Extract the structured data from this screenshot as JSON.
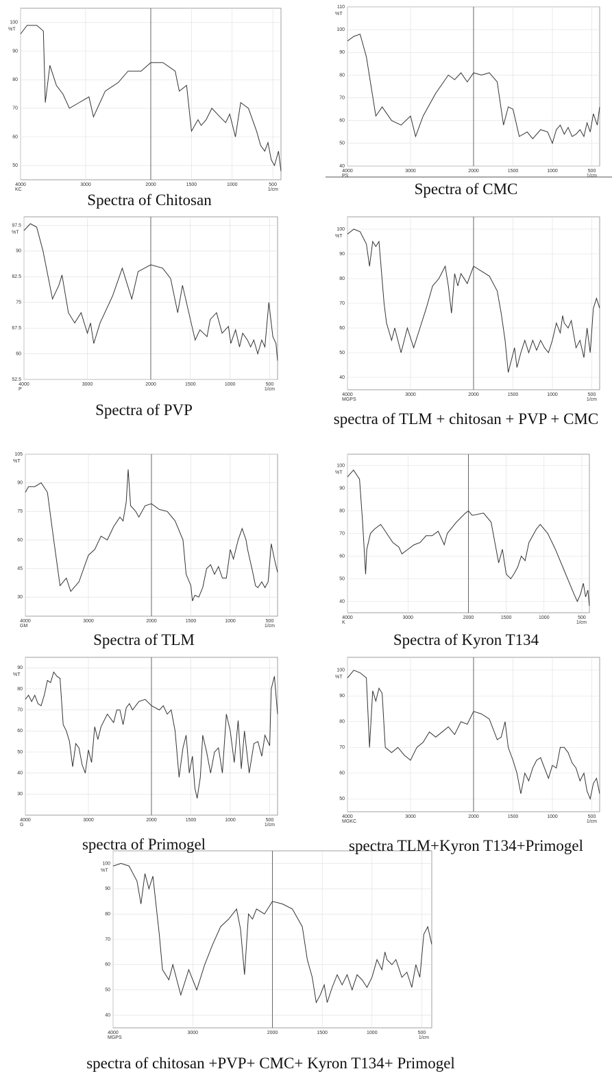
{
  "chart_data": [
    {
      "type": "line",
      "caption": "Spectra of Chitosan",
      "code": "KC",
      "y_label": "%T",
      "x_label": "1/cm",
      "color": "#333333",
      "grid": true,
      "xlim": [
        4000,
        400
      ],
      "xticks": [
        4000,
        3000,
        2000,
        1500,
        1000,
        500
      ],
      "ylim": [
        45,
        105
      ],
      "yticks": [
        50,
        60,
        70,
        80,
        90,
        100
      ],
      "x": [
        4000,
        3900,
        3750,
        3650,
        3620,
        3550,
        3450,
        3350,
        3250,
        3100,
        2950,
        2880,
        2700,
        2500,
        2350,
        2150,
        2000,
        1850,
        1700,
        1650,
        1560,
        1500,
        1420,
        1380,
        1320,
        1250,
        1150,
        1080,
        1030,
        960,
        895,
        800,
        700,
        650,
        600,
        560,
        520,
        480,
        430,
        400
      ],
      "values": [
        96,
        99,
        99,
        97,
        72,
        85,
        78,
        75,
        70,
        72,
        74,
        67,
        76,
        79,
        83,
        83,
        86,
        86,
        83,
        76,
        78,
        62,
        66,
        64,
        66,
        70,
        67,
        65,
        68,
        60,
        72,
        70,
        62,
        57,
        55,
        58,
        52,
        50,
        55,
        48
      ]
    },
    {
      "type": "line",
      "caption": "Spectra of CMC",
      "code": "PS",
      "y_label": "%T",
      "x_label": "1/cm",
      "color": "#333333",
      "grid": true,
      "xlim": [
        4000,
        400
      ],
      "xticks": [
        4000,
        3000,
        2000,
        1500,
        1000,
        500
      ],
      "ylim": [
        40,
        110
      ],
      "yticks": [
        40,
        50,
        60,
        70,
        80,
        90,
        100,
        110
      ],
      "x": [
        4000,
        3900,
        3800,
        3700,
        3550,
        3450,
        3300,
        3150,
        3000,
        2920,
        2800,
        2600,
        2400,
        2300,
        2200,
        2100,
        2000,
        1900,
        1800,
        1700,
        1620,
        1560,
        1500,
        1420,
        1320,
        1250,
        1150,
        1060,
        1000,
        950,
        900,
        850,
        800,
        750,
        700,
        650,
        600,
        560,
        520,
        480,
        430,
        400
      ],
      "values": [
        95,
        97,
        98,
        88,
        62,
        66,
        60,
        58,
        62,
        53,
        62,
        72,
        80,
        78,
        81,
        77,
        81,
        80,
        81,
        77,
        58,
        66,
        65,
        53,
        55,
        52,
        56,
        55,
        50,
        56,
        58,
        54,
        57,
        53,
        54,
        56,
        53,
        59,
        55,
        63,
        58,
        66
      ]
    },
    {
      "type": "line",
      "caption": "Spectra  of  PVP",
      "code": "P",
      "y_label": "%T",
      "x_label": "1/cm",
      "color": "#333333",
      "grid": true,
      "xlim": [
        4000,
        400
      ],
      "xticks": [
        4000,
        3000,
        2000,
        1500,
        1000,
        500
      ],
      "ylim": [
        52.5,
        100
      ],
      "yticks": [
        52.5,
        60,
        67.5,
        75,
        82.5,
        90,
        97.5
      ],
      "x": [
        4000,
        3900,
        3800,
        3700,
        3550,
        3450,
        3400,
        3300,
        3200,
        3100,
        3000,
        2950,
        2900,
        2800,
        2600,
        2450,
        2400,
        2300,
        2200,
        2000,
        1850,
        1750,
        1660,
        1600,
        1500,
        1440,
        1380,
        1290,
        1250,
        1170,
        1100,
        1020,
        990,
        930,
        880,
        840,
        780,
        740,
        700,
        650,
        600,
        560,
        510,
        460,
        420,
        400
      ],
      "values": [
        96,
        98,
        97,
        90,
        76,
        80,
        83,
        72,
        69,
        72,
        66,
        69,
        63,
        69,
        77,
        85,
        82,
        76,
        84,
        86,
        85,
        82,
        72,
        80,
        70,
        64,
        67,
        65,
        70,
        72,
        66,
        68,
        63,
        67,
        62,
        66,
        64,
        62,
        64,
        60,
        64,
        62,
        75,
        65,
        63,
        58
      ]
    },
    {
      "type": "line",
      "caption": "spectra of TLM + chitosan + PVP + CMC",
      "code": "MGPS",
      "y_label": "%T",
      "x_label": "1/cm",
      "color": "#333333",
      "grid": true,
      "xlim": [
        4000,
        400
      ],
      "xticks": [
        4000,
        3000,
        2000,
        1500,
        1000,
        500
      ],
      "ylim": [
        35,
        105
      ],
      "yticks": [
        40,
        50,
        60,
        70,
        80,
        90,
        100
      ],
      "x": [
        4000,
        3900,
        3800,
        3700,
        3650,
        3600,
        3550,
        3500,
        3420,
        3380,
        3300,
        3250,
        3150,
        3050,
        2950,
        2850,
        2750,
        2650,
        2550,
        2450,
        2400,
        2350,
        2300,
        2250,
        2200,
        2100,
        2000,
        1900,
        1800,
        1700,
        1650,
        1600,
        1560,
        1520,
        1480,
        1450,
        1400,
        1350,
        1300,
        1250,
        1200,
        1150,
        1100,
        1050,
        1000,
        950,
        900,
        870,
        850,
        800,
        760,
        700,
        650,
        600,
        560,
        520,
        480,
        440,
        400
      ],
      "values": [
        98,
        100,
        99,
        94,
        85,
        95,
        93,
        95,
        70,
        62,
        55,
        60,
        50,
        60,
        52,
        60,
        68,
        77,
        80,
        85,
        77,
        66,
        82,
        77,
        82,
        78,
        85,
        83,
        81,
        75,
        66,
        55,
        42,
        47,
        52,
        44,
        50,
        55,
        50,
        55,
        51,
        55,
        52,
        50,
        55,
        62,
        58,
        65,
        62,
        60,
        63,
        52,
        55,
        48,
        60,
        50,
        68,
        72,
        68
      ]
    },
    {
      "type": "line",
      "caption": "Spectra of TLM",
      "code": "GM",
      "y_label": "%T",
      "x_label": "1/cm",
      "color": "#333333",
      "grid": true,
      "xlim": [
        4000,
        400
      ],
      "xticks": [
        4000,
        3000,
        2000,
        1500,
        1000,
        500
      ],
      "ylim": [
        20,
        105
      ],
      "yticks": [
        30,
        45,
        60,
        75,
        90,
        105
      ],
      "x": [
        4000,
        3950,
        3850,
        3750,
        3650,
        3550,
        3450,
        3350,
        3280,
        3150,
        3000,
        2900,
        2800,
        2700,
        2600,
        2500,
        2450,
        2400,
        2370,
        2330,
        2250,
        2200,
        2100,
        2000,
        1900,
        1800,
        1700,
        1600,
        1560,
        1500,
        1480,
        1450,
        1400,
        1350,
        1300,
        1250,
        1200,
        1150,
        1100,
        1050,
        1000,
        960,
        900,
        850,
        800,
        780,
        720,
        680,
        650,
        600,
        560,
        520,
        480,
        440,
        400
      ],
      "values": [
        85,
        88,
        88,
        90,
        85,
        60,
        36,
        40,
        33,
        38,
        52,
        55,
        62,
        60,
        67,
        72,
        70,
        80,
        97,
        78,
        75,
        72,
        78,
        79,
        76,
        75,
        70,
        60,
        42,
        36,
        28,
        31,
        30,
        35,
        45,
        47,
        42,
        46,
        40,
        40,
        55,
        50,
        60,
        66,
        60,
        55,
        44,
        36,
        35,
        38,
        35,
        38,
        58,
        50,
        43
      ]
    },
    {
      "type": "line",
      "caption": "Spectra of Kyron T134",
      "code": "K",
      "y_label": "%T",
      "x_label": "1/cm",
      "color": "#333333",
      "grid": true,
      "xlim": [
        4000,
        400
      ],
      "xticks": [
        4000,
        3000,
        2000,
        1500,
        1000,
        500
      ],
      "ylim": [
        35,
        105
      ],
      "yticks": [
        40,
        50,
        60,
        70,
        80,
        90,
        100
      ],
      "x": [
        4000,
        3900,
        3800,
        3750,
        3700,
        3680,
        3620,
        3550,
        3450,
        3400,
        3350,
        3250,
        3150,
        3100,
        3000,
        2900,
        2800,
        2700,
        2600,
        2500,
        2400,
        2350,
        2200,
        2050,
        2000,
        1950,
        1800,
        1700,
        1650,
        1600,
        1550,
        1500,
        1440,
        1400,
        1350,
        1300,
        1250,
        1200,
        1100,
        1050,
        950,
        850,
        750,
        650,
        600,
        560,
        520,
        480,
        450,
        420,
        400
      ],
      "values": [
        95,
        98,
        94,
        75,
        52,
        63,
        70,
        72,
        74,
        72,
        70,
        66,
        64,
        61,
        63,
        65,
        66,
        69,
        69,
        71,
        65,
        70,
        75,
        79,
        80,
        78,
        79,
        75,
        66,
        57,
        63,
        52,
        50,
        52,
        55,
        60,
        58,
        66,
        72,
        74,
        70,
        63,
        55,
        47,
        43,
        40,
        43,
        48,
        42,
        45,
        38
      ]
    },
    {
      "type": "line",
      "caption": "spectra of Primogel",
      "code": "G",
      "y_label": "%T",
      "x_label": "1/cm",
      "color": "#333333",
      "grid": true,
      "xlim": [
        4000,
        400
      ],
      "xticks": [
        4000,
        3000,
        2000,
        1500,
        1000,
        500
      ],
      "ylim": [
        20,
        95
      ],
      "yticks": [
        30,
        40,
        50,
        60,
        70,
        80,
        90
      ],
      "x": [
        4000,
        3950,
        3900,
        3850,
        3800,
        3750,
        3700,
        3650,
        3600,
        3550,
        3500,
        3450,
        3400,
        3350,
        3300,
        3250,
        3200,
        3150,
        3100,
        3050,
        3000,
        2950,
        2900,
        2850,
        2800,
        2700,
        2600,
        2550,
        2500,
        2450,
        2400,
        2350,
        2300,
        2200,
        2100,
        2000,
        1900,
        1850,
        1800,
        1750,
        1700,
        1650,
        1600,
        1560,
        1520,
        1480,
        1450,
        1420,
        1380,
        1350,
        1300,
        1250,
        1200,
        1150,
        1100,
        1050,
        1000,
        950,
        900,
        860,
        820,
        760,
        700,
        650,
        600,
        560,
        500,
        480,
        440,
        400
      ],
      "values": [
        75,
        77,
        74,
        77,
        73,
        72,
        77,
        84,
        83,
        88,
        86,
        85,
        63,
        60,
        55,
        43,
        54,
        52,
        44,
        40,
        51,
        45,
        62,
        56,
        62,
        68,
        64,
        70,
        70,
        63,
        71,
        73,
        70,
        74,
        75,
        72,
        70,
        72,
        68,
        70,
        60,
        38,
        52,
        58,
        40,
        48,
        33,
        28,
        38,
        58,
        50,
        40,
        50,
        52,
        40,
        68,
        60,
        45,
        65,
        42,
        60,
        40,
        54,
        55,
        48,
        58,
        53,
        80,
        86,
        68
      ]
    },
    {
      "type": "line",
      "caption": "spectra TLM+Kyron T134+Primogel",
      "code": "MGKC",
      "y_label": "%T",
      "x_label": "1/cm",
      "color": "#333333",
      "grid": true,
      "xlim": [
        4000,
        400
      ],
      "xticks": [
        4000,
        3000,
        2000,
        1500,
        1000,
        500
      ],
      "ylim": [
        45,
        105
      ],
      "yticks": [
        50,
        60,
        70,
        80,
        90,
        100
      ],
      "x": [
        4000,
        3900,
        3800,
        3700,
        3650,
        3600,
        3550,
        3500,
        3450,
        3400,
        3300,
        3200,
        3100,
        3000,
        2900,
        2800,
        2700,
        2600,
        2500,
        2400,
        2300,
        2200,
        2100,
        2000,
        1900,
        1800,
        1700,
        1650,
        1600,
        1560,
        1500,
        1450,
        1400,
        1350,
        1300,
        1250,
        1200,
        1150,
        1100,
        1050,
        1000,
        950,
        900,
        850,
        800,
        750,
        700,
        650,
        600,
        560,
        520,
        480,
        440,
        400
      ],
      "values": [
        97,
        100,
        99,
        97,
        70,
        92,
        88,
        93,
        91,
        70,
        68,
        70,
        67,
        65,
        70,
        72,
        76,
        74,
        76,
        78,
        75,
        80,
        79,
        84,
        83,
        81,
        73,
        74,
        80,
        70,
        65,
        60,
        52,
        60,
        57,
        62,
        65,
        66,
        62,
        58,
        63,
        62,
        70,
        70,
        68,
        64,
        62,
        57,
        60,
        53,
        50,
        56,
        58,
        52
      ]
    },
    {
      "type": "line",
      "caption": "spectra of chitosan +PVP+ CMC+ Kyron  T134+ Primogel",
      "code": "MGPS",
      "y_label": "%T",
      "x_label": "1/cm",
      "color": "#333333",
      "grid": true,
      "xlim": [
        4000,
        400
      ],
      "xticks": [
        4000,
        3000,
        2000,
        1500,
        1000,
        500
      ],
      "ylim": [
        35,
        105
      ],
      "yticks": [
        40,
        50,
        60,
        70,
        80,
        90,
        100
      ],
      "x": [
        4000,
        3900,
        3800,
        3700,
        3650,
        3600,
        3550,
        3500,
        3420,
        3380,
        3300,
        3250,
        3150,
        3050,
        2950,
        2850,
        2750,
        2650,
        2550,
        2450,
        2400,
        2350,
        2300,
        2250,
        2200,
        2100,
        2000,
        1900,
        1800,
        1700,
        1650,
        1600,
        1560,
        1520,
        1480,
        1450,
        1400,
        1350,
        1300,
        1250,
        1200,
        1150,
        1100,
        1050,
        1000,
        950,
        900,
        870,
        850,
        800,
        760,
        700,
        650,
        600,
        560,
        520,
        480,
        440,
        400
      ],
      "values": [
        99,
        100,
        99,
        93,
        84,
        96,
        90,
        95,
        72,
        58,
        54,
        60,
        48,
        58,
        50,
        60,
        68,
        75,
        78,
        82,
        74,
        56,
        80,
        78,
        82,
        80,
        85,
        84,
        82,
        75,
        62,
        55,
        45,
        48,
        52,
        45,
        51,
        56,
        52,
        56,
        50,
        56,
        54,
        51,
        55,
        62,
        58,
        65,
        62,
        60,
        62,
        55,
        57,
        51,
        60,
        55,
        72,
        75,
        68
      ]
    }
  ]
}
